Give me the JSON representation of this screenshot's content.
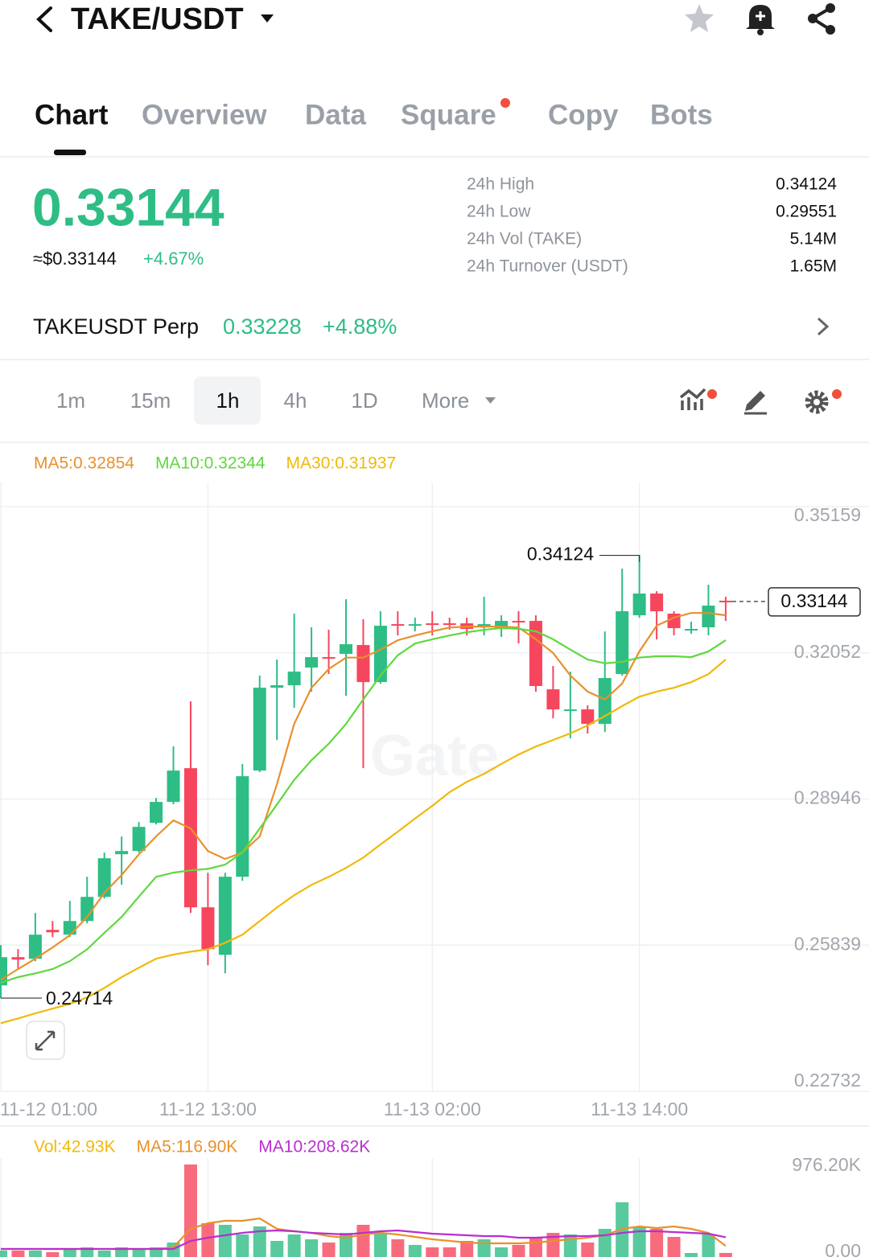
{
  "header": {
    "title": "TAKE/USDT"
  },
  "tabs": [
    "Chart",
    "Overview",
    "Data",
    "Square",
    "Copy",
    "Bots"
  ],
  "price": {
    "last": "0.33144",
    "usd": "≈$0.33144",
    "change": "+4.67%"
  },
  "stats": [
    {
      "label": "24h High",
      "value": "0.34124"
    },
    {
      "label": "24h Low",
      "value": "0.29551"
    },
    {
      "label": "24h Vol (TAKE)",
      "value": "5.14M"
    },
    {
      "label": "24h Turnover (USDT)",
      "value": "1.65M"
    }
  ],
  "perp": {
    "name": "TAKEUSDT Perp",
    "price": "0.33228",
    "change": "+4.88%"
  },
  "timeframes": [
    "1m",
    "15m",
    "1h",
    "4h",
    "1D",
    "More"
  ],
  "watermark": "Gate",
  "chart_data": [
    {
      "type": "candlestick",
      "up_color": "#2ebd85",
      "down_color": "#f6465d",
      "x": [
        "11-12 01:00",
        null,
        null,
        null,
        null,
        null,
        null,
        null,
        null,
        null,
        null,
        null,
        "11-12 13:00",
        null,
        null,
        null,
        null,
        null,
        null,
        null,
        null,
        null,
        null,
        null,
        null,
        "11-13 02:00",
        null,
        null,
        null,
        null,
        null,
        null,
        null,
        null,
        null,
        null,
        null,
        "11-13 14:00",
        null,
        null,
        null,
        null,
        null
      ],
      "open": [
        0.24984,
        0.25583,
        0.25549,
        0.26164,
        0.26062,
        0.26352,
        0.26865,
        0.27772,
        0.2784,
        0.28439,
        0.28883,
        0.29601,
        0.26643,
        0.25634,
        0.27293,
        0.2955,
        0.31311,
        0.31363,
        0.31739,
        0.31961,
        0.3203,
        0.32218,
        0.31431,
        0.32662,
        0.32628,
        0.32679,
        0.32679,
        0.32679,
        0.32628,
        0.3256,
        0.32731,
        0.32731,
        0.31277,
        0.30816,
        0.3085,
        0.30542,
        0.31602,
        0.3285,
        0.33312,
        0.32885,
        0.32526,
        0.32594,
        0.3316
      ],
      "high": [
        0.25839,
        0.25754,
        0.26523,
        0.26352,
        0.2678,
        0.27293,
        0.27806,
        0.28148,
        0.28456,
        0.28969,
        0.30063,
        0.31021,
        0.27378,
        0.27378,
        0.29687,
        0.31568,
        0.3191,
        0.32885,
        0.32594,
        0.32543,
        0.33192,
        0.32765,
        0.32936,
        0.32936,
        0.32799,
        0.32936,
        0.32799,
        0.32799,
        0.33244,
        0.3285,
        0.32936,
        0.3285,
        0.31773,
        0.31653,
        0.30935,
        0.32508,
        0.33842,
        0.34124,
        0.33363,
        0.32936,
        0.32714,
        0.335,
        0.33244
      ],
      "low": [
        0.24714,
        0.25326,
        0.25497,
        0.2601,
        0.2601,
        0.26301,
        0.26831,
        0.27122,
        0.27806,
        0.28404,
        0.28832,
        0.26523,
        0.25412,
        0.25241,
        0.27207,
        0.29516,
        0.302,
        0.30884,
        0.31226,
        0.31602,
        0.3114,
        0.29601,
        0.31397,
        0.32423,
        0.32508,
        0.32423,
        0.32543,
        0.32423,
        0.32423,
        0.32389,
        0.32252,
        0.31226,
        0.30662,
        0.30234,
        0.30337,
        0.30371,
        0.31568,
        0.32799,
        0.32337,
        0.32423,
        0.32457,
        0.32423,
        0.32731
      ],
      "close": [
        0.25583,
        0.25532,
        0.26062,
        0.26113,
        0.26352,
        0.26865,
        0.27686,
        0.2784,
        0.28353,
        0.28883,
        0.2955,
        0.26643,
        0.25754,
        0.27293,
        0.2943,
        0.31311,
        0.31363,
        0.31653,
        0.31961,
        0.31927,
        0.32235,
        0.31431,
        0.32628,
        0.32628,
        0.32662,
        0.32645,
        0.32645,
        0.3256,
        0.32662,
        0.32731,
        0.32697,
        0.31346,
        0.3085,
        0.3085,
        0.30542,
        0.31517,
        0.32936,
        0.33312,
        0.32936,
        0.32577,
        0.3256,
        0.33056,
        0.33144
      ],
      "series": [
        {
          "name": "MA5:0.32854",
          "color": "#e8912d",
          "values": [
            0.251,
            0.2533,
            0.2555,
            0.2579,
            0.2605,
            0.2644,
            0.2695,
            0.2733,
            0.2777,
            0.2815,
            0.2849,
            0.2832,
            0.2784,
            0.2767,
            0.2781,
            0.2815,
            0.2926,
            0.3054,
            0.3131,
            0.3171,
            0.3195,
            0.3195,
            0.3212,
            0.3232,
            0.3242,
            0.3251,
            0.3259,
            0.3261,
            0.3261,
            0.3261,
            0.3259,
            0.3234,
            0.3205,
            0.3157,
            0.3123,
            0.3106,
            0.314,
            0.3208,
            0.3263,
            0.328,
            0.329,
            0.329,
            0.3285
          ]
        },
        {
          "name": "MA10:0.32344",
          "color": "#5fd83e",
          "values": [
            0.2504,
            0.2516,
            0.2524,
            0.2533,
            0.255,
            0.2575,
            0.261,
            0.2644,
            0.2687,
            0.2729,
            0.2738,
            0.2743,
            0.2746,
            0.2755,
            0.2781,
            0.2832,
            0.2883,
            0.2935,
            0.2977,
            0.3012,
            0.3054,
            0.3106,
            0.3157,
            0.32,
            0.3225,
            0.3234,
            0.3242,
            0.3249,
            0.3254,
            0.3258,
            0.3256,
            0.3251,
            0.3234,
            0.3212,
            0.3191,
            0.3183,
            0.3186,
            0.3195,
            0.3198,
            0.3198,
            0.3196,
            0.3208,
            0.3232
          ]
        },
        {
          "name": "MA30:0.31937",
          "color": "#f0b90b",
          "values": [
            0.2418,
            0.2428,
            0.2439,
            0.2449,
            0.2459,
            0.2473,
            0.2493,
            0.2516,
            0.2536,
            0.2555,
            0.2564,
            0.257,
            0.2575,
            0.2589,
            0.2606,
            0.2635,
            0.2664,
            0.269,
            0.2712,
            0.2729,
            0.2748,
            0.277,
            0.2798,
            0.2825,
            0.2853,
            0.288,
            0.2909,
            0.2931,
            0.2948,
            0.2969,
            0.2989,
            0.3006,
            0.302,
            0.3034,
            0.3051,
            0.3071,
            0.3092,
            0.3112,
            0.3123,
            0.3131,
            0.3143,
            0.316,
            0.3191
          ]
        }
      ],
      "ylim": [
        0.22732,
        0.35159
      ],
      "yticks": [
        0.35159,
        0.32052,
        0.28946,
        0.25839,
        0.22732
      ],
      "grid": true,
      "max_label": 0.34124,
      "min_label": 0.24714,
      "last_price": 0.33144
    },
    {
      "type": "bar",
      "series": [
        {
          "name": "Vol:42.93K",
          "color": "#f0b90b",
          "values": [
            67900,
            67900,
            67900,
            50900,
            84900,
            101900,
            67900,
            101900,
            84900,
            101900,
            152800,
            976200,
            356500,
            339600,
            237700,
            322600,
            169800,
            237700,
            186800,
            152800,
            254700,
            339600,
            254700,
            186800,
            127300,
            101900,
            101900,
            169800,
            186800,
            101900,
            127300,
            212200,
            254700,
            237700,
            152800,
            297100,
            577300,
            322600,
            297100,
            212200,
            42400,
            237700,
            42930
          ]
        },
        {
          "name": "MA5:116.90K",
          "color": "#e8912d",
          "values": [
            84900,
            84900,
            84900,
            84900,
            84900,
            84900,
            84900,
            84900,
            84900,
            84900,
            101900,
            297100,
            356500,
            382000,
            382000,
            407500,
            297100,
            271600,
            254700,
            220700,
            203700,
            237700,
            254700,
            237700,
            212200,
            186800,
            169800,
            152800,
            144300,
            144300,
            144300,
            152800,
            169800,
            186800,
            203700,
            229200,
            297100,
            322600,
            305600,
            322600,
            297100,
            254700,
            116900
          ]
        },
        {
          "name": "MA10:208.62K",
          "color": "#b82fd0",
          "values": [
            84900,
            84900,
            84900,
            84900,
            84900,
            84900,
            84900,
            84900,
            84900,
            84900,
            84900,
            169800,
            203700,
            229200,
            254700,
            271600,
            280100,
            271600,
            254700,
            246200,
            237700,
            254700,
            271600,
            280100,
            263200,
            246200,
            237700,
            229200,
            220700,
            220700,
            203700,
            203700,
            212200,
            220700,
            220700,
            229200,
            254700,
            271600,
            271600,
            263200,
            254700,
            246200,
            208620
          ]
        }
      ],
      "ylim": [
        0,
        976200
      ],
      "yticks": [
        {
          "value": 976200,
          "label": "976.20K"
        },
        {
          "value": 0,
          "label": "0.00"
        }
      ]
    }
  ]
}
